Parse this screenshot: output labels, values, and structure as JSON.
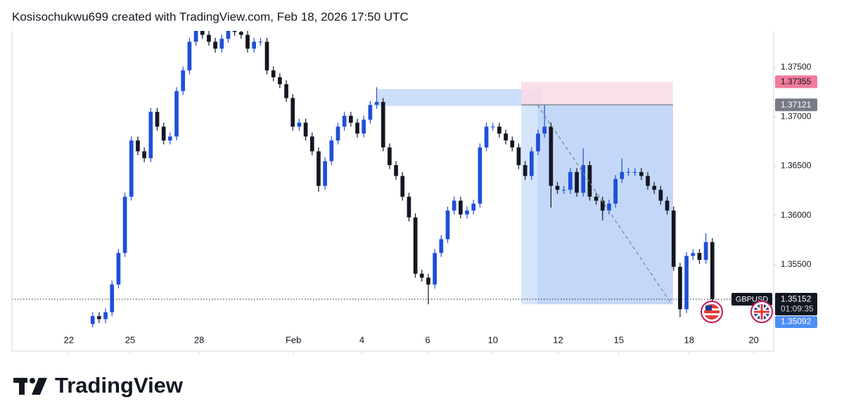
{
  "header": "Kosisochukwu699 created with TradingView.com, Feb 18, 2026 17:50 UTC",
  "logo": "TradingView",
  "chart_data": {
    "type": "candlestick",
    "symbol": "GBPUSD",
    "up_color": "#1f4fd8",
    "down_color": "#131722",
    "xlim": [
      -12.5,
      105.5
    ],
    "xticks": [
      {
        "value": -3.7,
        "label": "22"
      },
      {
        "value": 5.8,
        "label": "25"
      },
      {
        "value": 16.5,
        "label": "28"
      },
      {
        "value": 31.1,
        "label": "Feb"
      },
      {
        "value": 41.7,
        "label": "4"
      },
      {
        "value": 51.9,
        "label": "6"
      },
      {
        "value": 62,
        "label": "10"
      },
      {
        "value": 72.1,
        "label": "12"
      },
      {
        "value": 81.5,
        "label": "15"
      },
      {
        "value": 92.4,
        "label": "18"
      },
      {
        "value": 102.4,
        "label": "20"
      }
    ],
    "ylim": [
      1.34867,
      1.3787
    ],
    "yticks": [
      {
        "value": 1.355,
        "label": "1.35500"
      },
      {
        "value": 1.36,
        "label": "1.36000"
      },
      {
        "value": 1.365,
        "label": "1.36500"
      },
      {
        "value": 1.37,
        "label": "1.37000"
      },
      {
        "value": 1.375,
        "label": "1.37500"
      }
    ],
    "open": [
      1.349,
      1.3498,
      1.3495,
      1.3502,
      1.353,
      1.3562,
      1.3619,
      1.3676,
      1.3665,
      1.3658,
      1.3705,
      1.369,
      1.3676,
      1.368,
      1.3726,
      1.3747,
      1.3776,
      1.3787,
      1.3783,
      1.3776,
      1.3769,
      1.3779,
      1.3787,
      1.3786,
      1.3783,
      1.3769,
      1.3776,
      1.3776,
      1.3747,
      1.374,
      1.3733,
      1.3719,
      1.369,
      1.3694,
      1.368,
      1.3665,
      1.363,
      1.3655,
      1.3676,
      1.369,
      1.3701,
      1.3694,
      1.3683,
      1.3697,
      1.3712,
      1.3715,
      1.3669,
      1.3651,
      1.364,
      1.3619,
      1.3598,
      1.3541,
      1.3537,
      1.353,
      1.3562,
      1.3576,
      1.3605,
      1.3615,
      1.3601,
      1.3605,
      1.3612,
      1.3669,
      1.369,
      1.369,
      1.3683,
      1.3676,
      1.3669,
      1.3651,
      1.364,
      1.3665,
      1.3683,
      1.369,
      1.363,
      1.3626,
      1.3626,
      1.3644,
      1.3623,
      1.3651,
      1.3619,
      1.3615,
      1.3605,
      1.3612,
      1.3637,
      1.3644,
      1.3644,
      1.3644,
      1.364,
      1.363,
      1.3626,
      1.3615,
      1.3605,
      1.3548,
      1.3505,
      1.3559,
      1.3562,
      1.3555,
      1.3573
    ],
    "high": [
      1.3502,
      1.3502,
      1.3506,
      1.3534,
      1.3566,
      1.3623,
      1.368,
      1.368,
      1.3669,
      1.3709,
      1.3709,
      1.3694,
      1.3684,
      1.373,
      1.3751,
      1.378,
      1.3791,
      1.3791,
      1.3787,
      1.378,
      1.3783,
      1.3791,
      1.3791,
      1.379,
      1.3787,
      1.378,
      1.378,
      1.378,
      1.3751,
      1.3744,
      1.3737,
      1.3723,
      1.3698,
      1.3698,
      1.3684,
      1.3669,
      1.3659,
      1.368,
      1.3694,
      1.3705,
      1.3705,
      1.3698,
      1.3701,
      1.3716,
      1.373,
      1.3719,
      1.3673,
      1.3655,
      1.3644,
      1.3623,
      1.3602,
      1.3545,
      1.3541,
      1.3566,
      1.358,
      1.3609,
      1.3619,
      1.3619,
      1.3609,
      1.3616,
      1.3673,
      1.3694,
      1.3694,
      1.3694,
      1.3687,
      1.368,
      1.3673,
      1.3655,
      1.3669,
      1.3687,
      1.3712,
      1.3694,
      1.3634,
      1.363,
      1.3648,
      1.3648,
      1.3668,
      1.3655,
      1.3623,
      1.3619,
      1.3616,
      1.3641,
      1.3658,
      1.3648,
      1.3648,
      1.3648,
      1.3644,
      1.3634,
      1.363,
      1.3619,
      1.3609,
      1.3552,
      1.3563,
      1.3566,
      1.3566,
      1.3582,
      1.3577
    ],
    "low": [
      1.3486,
      1.3491,
      1.3491,
      1.3498,
      1.3526,
      1.3558,
      1.3615,
      1.3661,
      1.3654,
      1.3654,
      1.3686,
      1.3672,
      1.3672,
      1.3676,
      1.3722,
      1.3743,
      1.3772,
      1.3779,
      1.3772,
      1.3765,
      1.3765,
      1.3775,
      1.3782,
      1.3779,
      1.3765,
      1.3765,
      1.3772,
      1.3743,
      1.3736,
      1.3729,
      1.3715,
      1.3686,
      1.3686,
      1.3676,
      1.3661,
      1.3624,
      1.3626,
      1.3651,
      1.3672,
      1.3686,
      1.369,
      1.3679,
      1.3679,
      1.3693,
      1.3708,
      1.3665,
      1.3647,
      1.3636,
      1.3615,
      1.3594,
      1.3537,
      1.3533,
      1.351,
      1.3526,
      1.3558,
      1.3572,
      1.3601,
      1.3597,
      1.3597,
      1.3601,
      1.3608,
      1.3665,
      1.3686,
      1.3679,
      1.3672,
      1.3665,
      1.3647,
      1.3636,
      1.3636,
      1.3661,
      1.3679,
      1.3608,
      1.3622,
      1.3622,
      1.3622,
      1.3619,
      1.3619,
      1.3615,
      1.3611,
      1.3595,
      1.3601,
      1.3608,
      1.3633,
      1.364,
      1.364,
      1.3636,
      1.3626,
      1.3622,
      1.3611,
      1.3601,
      1.3544,
      1.3497,
      1.3501,
      1.3555,
      1.3551,
      1.3551,
      1.3511
    ],
    "close": [
      1.3498,
      1.3495,
      1.3502,
      1.353,
      1.3562,
      1.3619,
      1.3676,
      1.3665,
      1.3658,
      1.3705,
      1.369,
      1.3676,
      1.368,
      1.3726,
      1.3747,
      1.3776,
      1.3787,
      1.3783,
      1.3776,
      1.3769,
      1.3779,
      1.3787,
      1.3786,
      1.3783,
      1.3769,
      1.3776,
      1.3776,
      1.3747,
      1.374,
      1.3733,
      1.3719,
      1.369,
      1.3694,
      1.368,
      1.3665,
      1.363,
      1.3655,
      1.3676,
      1.369,
      1.3701,
      1.3694,
      1.3683,
      1.3697,
      1.3712,
      1.3715,
      1.3669,
      1.3651,
      1.364,
      1.3619,
      1.3598,
      1.3541,
      1.3537,
      1.353,
      1.3562,
      1.3576,
      1.3605,
      1.3615,
      1.3601,
      1.3605,
      1.3612,
      1.3669,
      1.369,
      1.369,
      1.3683,
      1.3676,
      1.3669,
      1.3651,
      1.364,
      1.3665,
      1.3683,
      1.369,
      1.363,
      1.3626,
      1.3626,
      1.3644,
      1.3623,
      1.3651,
      1.3619,
      1.3615,
      1.3605,
      1.3612,
      1.3637,
      1.3644,
      1.3644,
      1.3644,
      1.364,
      1.363,
      1.3626,
      1.3615,
      1.3605,
      1.3548,
      1.3505,
      1.3559,
      1.3562,
      1.3555,
      1.3573,
      1.35152
    ],
    "last_price": {
      "value": 1.35152,
      "label": "1.35152"
    },
    "countdown": "01:09:35",
    "low_price": {
      "value": 1.35092,
      "label": "1.35092"
    },
    "zone": {
      "start": 44.1,
      "end": 69.5,
      "top": 1.3728,
      "bottom": 1.3711,
      "color": "#bcd3f8"
    },
    "position": {
      "start": 66.4,
      "end": 89.9,
      "entry": {
        "value": 1.37121,
        "label": "1.37121"
      },
      "stop": {
        "value": 1.37355,
        "label": "1.37355"
      },
      "target": 1.351,
      "profit_color": "#b5cff7",
      "loss_color": "#fadbe4"
    },
    "trend_line": {
      "x": [
        68.9,
        89.7
      ],
      "y": [
        1.37121,
        1.351
      ]
    }
  }
}
